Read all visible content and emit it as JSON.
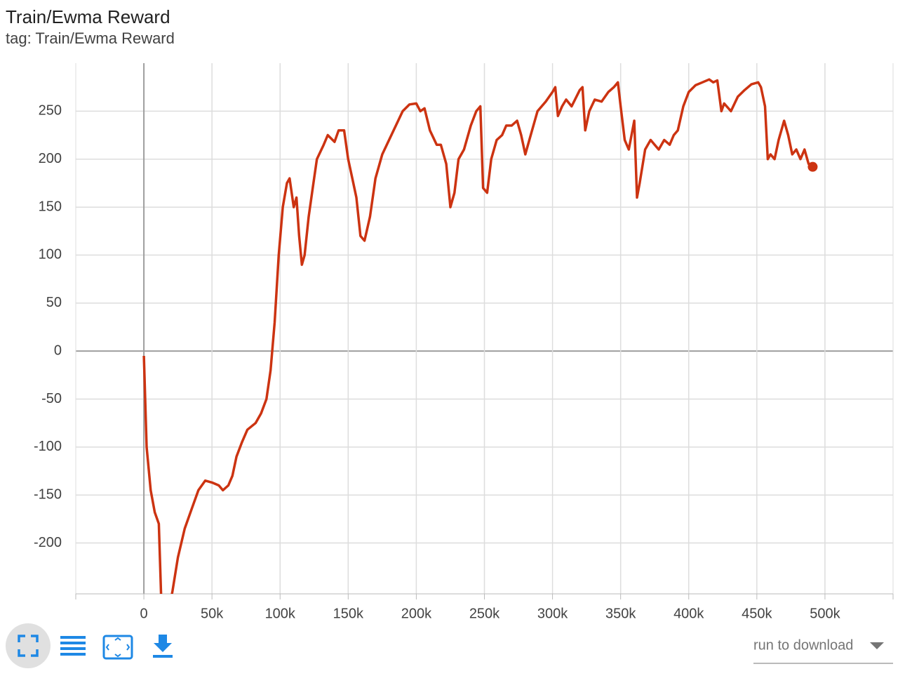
{
  "chart_data": {
    "type": "line",
    "title": "Train/Ewma Reward",
    "subtitle": "tag: Train/Ewma Reward",
    "x": [
      0,
      2000,
      5000,
      8000,
      11000,
      13000,
      17000,
      21000,
      25000,
      30000,
      35000,
      40000,
      45000,
      50000,
      55000,
      58000,
      62000,
      65000,
      68000,
      72000,
      76000,
      82000,
      86000,
      90000,
      93000,
      96000,
      99000,
      102000,
      105000,
      107000,
      110000,
      112000,
      114000,
      116000,
      118000,
      121000,
      124000,
      127000,
      132000,
      135000,
      140000,
      143000,
      147000,
      150000,
      153000,
      156000,
      159000,
      162000,
      166000,
      170000,
      175000,
      180000,
      185000,
      190000,
      195000,
      200000,
      203000,
      206000,
      210000,
      215000,
      218000,
      222000,
      225000,
      228000,
      231000,
      235000,
      240000,
      244000,
      247000,
      249000,
      252000,
      255000,
      259000,
      263000,
      266000,
      270000,
      274000,
      277000,
      280000,
      284000,
      289000,
      295000,
      300000,
      302000,
      304000,
      307000,
      310000,
      314000,
      320000,
      322000,
      324000,
      327000,
      331000,
      336000,
      341000,
      345000,
      348000,
      350000,
      353000,
      356000,
      360000,
      362000,
      364000,
      368000,
      372000,
      375000,
      378000,
      382000,
      386000,
      389000,
      392000,
      396000,
      400000,
      405000,
      410000,
      415000,
      418000,
      421000,
      424000,
      426000,
      431000,
      436000,
      441000,
      446000,
      451000,
      453000,
      456000,
      458000,
      460000,
      463000,
      466000,
      470000,
      473000,
      476000,
      479000,
      482000,
      485000,
      488000,
      491000
    ],
    "series": [
      {
        "color": "#cc3311",
        "values": [
          -5,
          -100,
          -145,
          -168,
          -180,
          -270,
          -280,
          -250,
          -215,
          -185,
          -165,
          -145,
          -135,
          -137,
          -140,
          -145,
          -140,
          -130,
          -110,
          -95,
          -82,
          -75,
          -65,
          -50,
          -20,
          30,
          100,
          150,
          175,
          180,
          150,
          160,
          120,
          90,
          100,
          140,
          170,
          200,
          215,
          225,
          218,
          230,
          230,
          200,
          180,
          160,
          120,
          115,
          140,
          180,
          205,
          220,
          235,
          250,
          257,
          258,
          250,
          253,
          230,
          215,
          215,
          195,
          150,
          165,
          200,
          210,
          235,
          250,
          255,
          170,
          165,
          200,
          220,
          225,
          235,
          235,
          240,
          225,
          205,
          225,
          250,
          260,
          270,
          275,
          245,
          255,
          262,
          255,
          272,
          275,
          230,
          250,
          262,
          260,
          270,
          275,
          280,
          255,
          220,
          210,
          240,
          160,
          175,
          210,
          220,
          215,
          210,
          220,
          215,
          225,
          230,
          255,
          270,
          277,
          280,
          283,
          280,
          282,
          250,
          258,
          250,
          265,
          272,
          278,
          280,
          275,
          255,
          200,
          205,
          200,
          220,
          240,
          225,
          205,
          210,
          200,
          210,
          195,
          192
        ]
      }
    ],
    "xlim": [
      -50000,
      550000
    ],
    "xticks": [
      0,
      {
        "value": 50000,
        "label": "50k"
      },
      {
        "value": 100000,
        "label": "100k"
      },
      {
        "value": 150000,
        "label": "150k"
      },
      {
        "value": 200000,
        "label": "200k"
      },
      {
        "value": 250000,
        "label": "250k"
      },
      {
        "value": 300000,
        "label": "300k"
      },
      {
        "value": 350000,
        "label": "350k"
      },
      {
        "value": 400000,
        "label": "400k"
      },
      {
        "value": 450000,
        "label": "450k"
      },
      {
        "value": 500000,
        "label": "500k"
      }
    ],
    "ylim": [
      -253,
      300
    ],
    "yticks": [
      -200,
      -150,
      -100,
      -50,
      0,
      50,
      100,
      150,
      200,
      250
    ],
    "grid": true
  },
  "controls": {
    "dropdown": "run to download"
  }
}
